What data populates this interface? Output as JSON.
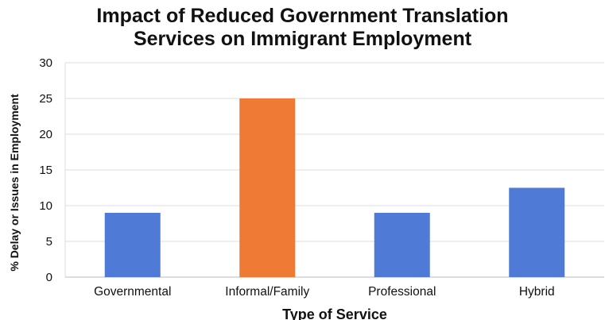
{
  "chart_data": {
    "type": "bar",
    "title_lines": [
      "Impact of Reduced Government Translation",
      "Services on Immigrant Employment"
    ],
    "xlabel": "Type of Service",
    "ylabel": "% Delay or Issues in Employment",
    "categories": [
      "Governmental",
      "Informal/Family",
      "Professional",
      "Hybrid"
    ],
    "values": [
      9,
      25,
      9,
      12.5
    ],
    "bar_colors": [
      "#4f7bd6",
      "#ef7a35",
      "#4f7bd6",
      "#4f7bd6"
    ],
    "ylim": [
      0,
      30
    ],
    "yticks": [
      0,
      5,
      10,
      15,
      20,
      25,
      30
    ],
    "grid": true,
    "legend": "none"
  },
  "colors": {
    "grid": "#dddddd",
    "axis": "#bbbbbb",
    "text": "#111111"
  }
}
